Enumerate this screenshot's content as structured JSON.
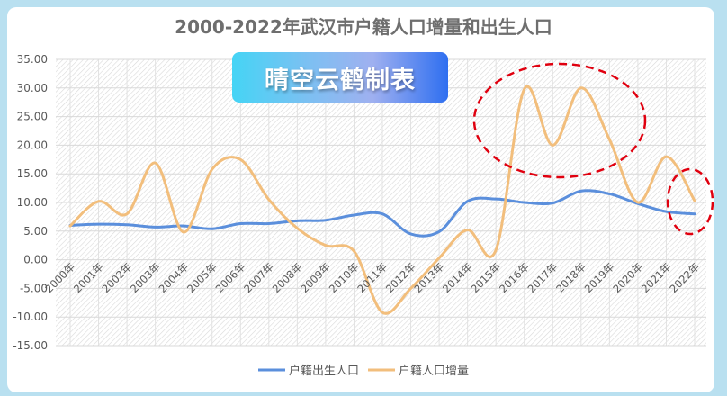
{
  "chart_data": {
    "type": "line",
    "title": "2000-2022年武汉市户籍人口增量和出生人口",
    "categories": [
      "2000年",
      "2001年",
      "2002年",
      "2003年",
      "2004年",
      "2005年",
      "2006年",
      "2007年",
      "2008年",
      "2009年",
      "2010年",
      "2011年",
      "2012年",
      "2013年",
      "2014年",
      "2015年",
      "2016年",
      "2017年",
      "2018年",
      "2019年",
      "2020年",
      "2021年",
      "2022年"
    ],
    "ylim": [
      -15,
      35
    ],
    "yticks": [
      "35.00",
      "30.00",
      "25.00",
      "20.00",
      "15.00",
      "10.00",
      "5.00",
      "0.00",
      "-5.00",
      "-10.00",
      "-15.00"
    ],
    "grid": true,
    "smooth": true,
    "legend_position": "bottom",
    "series": [
      {
        "name": "户籍出生人口",
        "color": "#5b8fdc",
        "values": [
          6.0,
          6.2,
          6.1,
          5.7,
          5.9,
          5.4,
          6.3,
          6.3,
          6.8,
          6.9,
          7.8,
          8.0,
          4.5,
          4.9,
          10.2,
          10.6,
          10.0,
          9.9,
          12.0,
          11.5,
          9.8,
          8.4,
          8.0
        ]
      },
      {
        "name": "户籍人口增量",
        "color": "#f2be7c",
        "values": [
          5.9,
          10.2,
          8.0,
          16.9,
          4.8,
          15.8,
          17.5,
          10.5,
          5.5,
          2.5,
          1.5,
          -9.2,
          -5.0,
          0.3,
          5.2,
          1.7,
          29.8,
          20.0,
          30.0,
          21.0,
          10.0,
          18.0,
          10.3
        ]
      }
    ],
    "annotations": [
      {
        "shape": "dashed-ellipse",
        "color": "#e0000f",
        "covers": [
          "2015年",
          "2020年"
        ]
      },
      {
        "shape": "dashed-ellipse",
        "color": "#e0000f",
        "covers": [
          "2022年"
        ]
      }
    ]
  },
  "watermark": {
    "text": "晴空云鹤制表"
  }
}
